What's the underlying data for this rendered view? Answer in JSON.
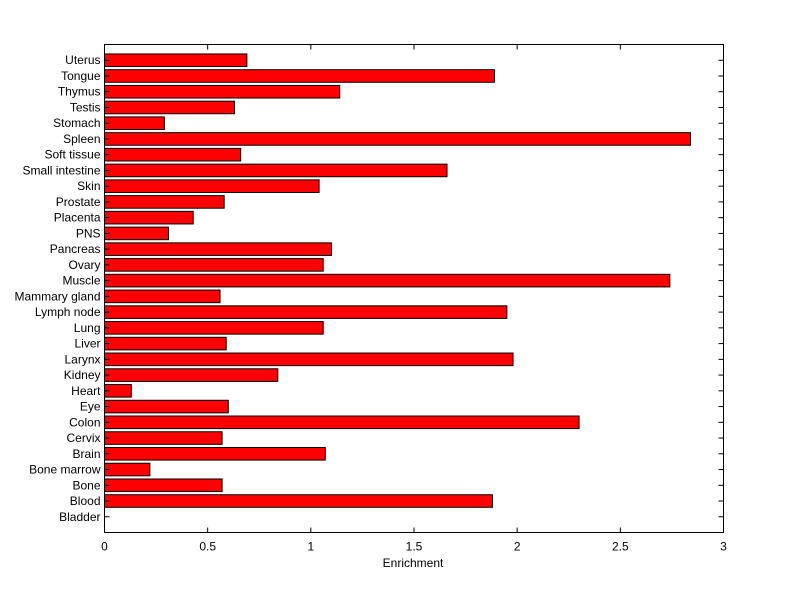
{
  "chart_data": {
    "type": "bar",
    "orientation": "horizontal",
    "title": "",
    "xlabel": "Enrichment",
    "ylabel": "",
    "xlim": [
      0,
      3
    ],
    "x_ticks": [
      "0",
      "0.5",
      "1",
      "1.5",
      "2",
      "2.5",
      "3"
    ],
    "grid": false,
    "legend": "none",
    "bar_color": "#ff0000",
    "bar_edge_color": "#000000",
    "categories": [
      "Bladder",
      "Blood",
      "Bone",
      "Bone marrow",
      "Brain",
      "Cervix",
      "Colon",
      "Eye",
      "Heart",
      "Kidney",
      "Larynx",
      "Liver",
      "Lung",
      "Lymph node",
      "Mammary gland",
      "Muscle",
      "Ovary",
      "Pancreas",
      "PNS",
      "Placenta",
      "Prostate",
      "Skin",
      "Small intestine",
      "Soft tissue",
      "Spleen",
      "Stomach",
      "Testis",
      "Thymus",
      "Tongue",
      "Uterus"
    ],
    "values": [
      0,
      1.88,
      0.57,
      0.22,
      1.07,
      0.57,
      2.3,
      0.6,
      0.13,
      0.84,
      1.98,
      0.59,
      1.06,
      1.95,
      0.56,
      2.74,
      1.06,
      1.1,
      0.31,
      0.43,
      0.58,
      1.04,
      1.66,
      0.66,
      2.84,
      0.29,
      0.63,
      1.14,
      1.89,
      0.69
    ]
  }
}
